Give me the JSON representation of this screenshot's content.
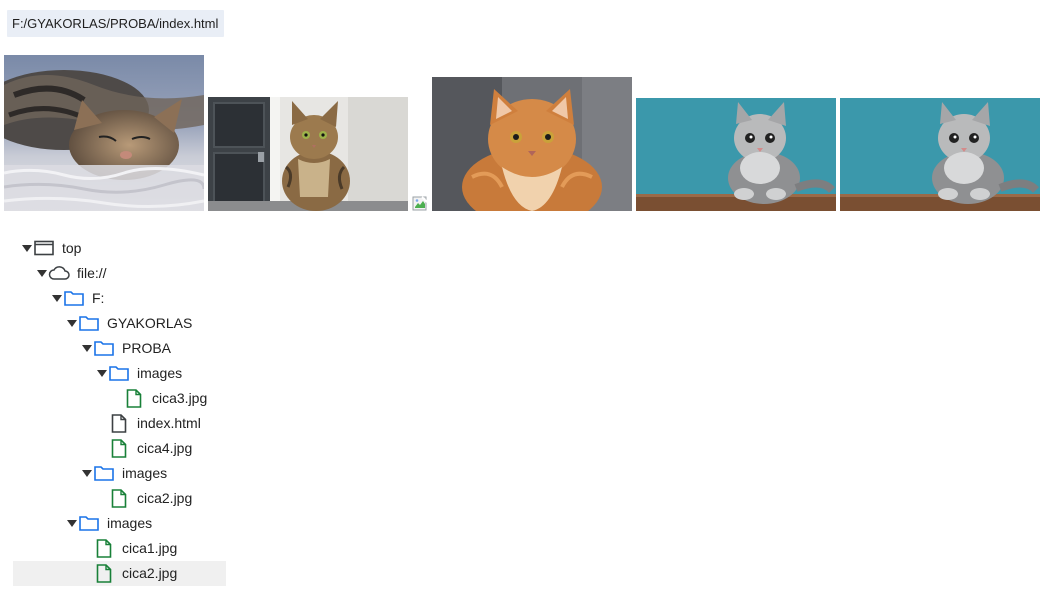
{
  "path_bar": {
    "text": "F:/GYAKORLAS/PROBA/index.html"
  },
  "images": [
    {
      "name": "image-cica1-thumbnail",
      "alt": "tabby cat lying on fluffy rug"
    },
    {
      "name": "image-cica2-thumbnail",
      "alt": "tabby cat sitting by door"
    },
    {
      "name": "image-broken",
      "alt": "broken image"
    },
    {
      "name": "image-cica3-thumbnail",
      "alt": "orange fluffy cat on couch"
    },
    {
      "name": "image-cica4-thumbnail",
      "alt": "grey kitten on blue background"
    },
    {
      "name": "image-cica4b-thumbnail",
      "alt": "grey kitten on blue background"
    }
  ],
  "tree": {
    "top": "top",
    "scheme": "file://",
    "drive": "F:",
    "gyakorlas": "GYAKORLAS",
    "proba": "PROBA",
    "proba_images": "images",
    "cica3": "cica3.jpg",
    "index": "index.html",
    "cica4": "cica4.jpg",
    "gyak_images": "images",
    "cica2_a": "cica2.jpg",
    "drive_images": "images",
    "cica1": "cica1.jpg",
    "cica2_b": "cica2.jpg"
  },
  "colors": {
    "folder": "#1a73e8",
    "image_file": "#188038",
    "text_file": "#3c4043",
    "selected_bg": "#f0f0f0",
    "path_bg": "#e9eef6"
  }
}
